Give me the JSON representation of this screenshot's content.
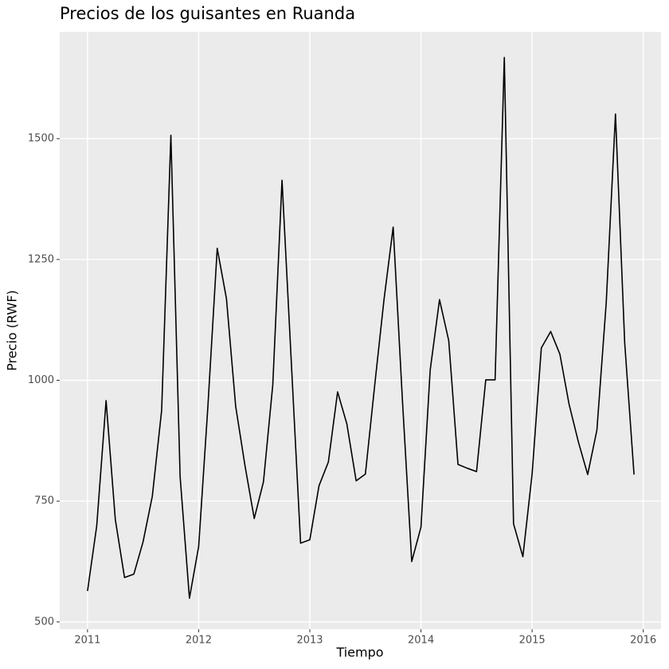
{
  "chart_data": {
    "type": "line",
    "title": "Precios de los guisantes en Ruanda",
    "xlabel": "Tiempo",
    "ylabel": "Precio (RWF)",
    "x": [
      2011,
      2011.083,
      2011.167,
      2011.25,
      2011.333,
      2011.417,
      2011.5,
      2011.583,
      2011.667,
      2011.75,
      2011.833,
      2011.917,
      2012,
      2012.083,
      2012.167,
      2012.25,
      2012.333,
      2012.417,
      2012.5,
      2012.583,
      2012.667,
      2012.75,
      2012.833,
      2012.917,
      2013,
      2013.083,
      2013.167,
      2013.25,
      2013.333,
      2013.417,
      2013.5,
      2013.583,
      2013.667,
      2013.75,
      2013.833,
      2013.917,
      2014,
      2014.083,
      2014.167,
      2014.25,
      2014.333,
      2014.417,
      2014.5,
      2014.583,
      2014.667,
      2014.75,
      2014.833,
      2014.917,
      2015,
      2015.083,
      2015.167,
      2015.25,
      2015.333,
      2015.417,
      2015.5,
      2015.583,
      2015.667,
      2015.75,
      2015.833,
      2015.917
    ],
    "series": [
      {
        "color": "#000000",
        "values": [
          564,
          699,
          958,
          712,
          592,
          599,
          666,
          760,
          938,
          1507,
          801,
          549,
          656,
          946,
          1273,
          1169,
          946,
          823,
          714,
          790,
          991,
          1414,
          1040,
          663,
          670,
          782,
          831,
          976,
          910,
          792,
          806,
          988,
          1166,
          1317,
          960,
          625,
          696,
          1021,
          1167,
          1082,
          826,
          818,
          811,
          1001,
          1001,
          1668,
          703,
          635,
          806,
          1067,
          1101,
          1054,
          950,
          872,
          805,
          897,
          1161,
          1551,
          1078,
          805
        ]
      }
    ],
    "xlim": [
      2010.75,
      2016.16
    ],
    "xticks": [
      2011,
      2012,
      2013,
      2014,
      2015,
      2016
    ],
    "ylim": [
      485,
      1721
    ],
    "yticks": [
      500,
      750,
      1000,
      1250,
      1500
    ],
    "grid": true
  }
}
